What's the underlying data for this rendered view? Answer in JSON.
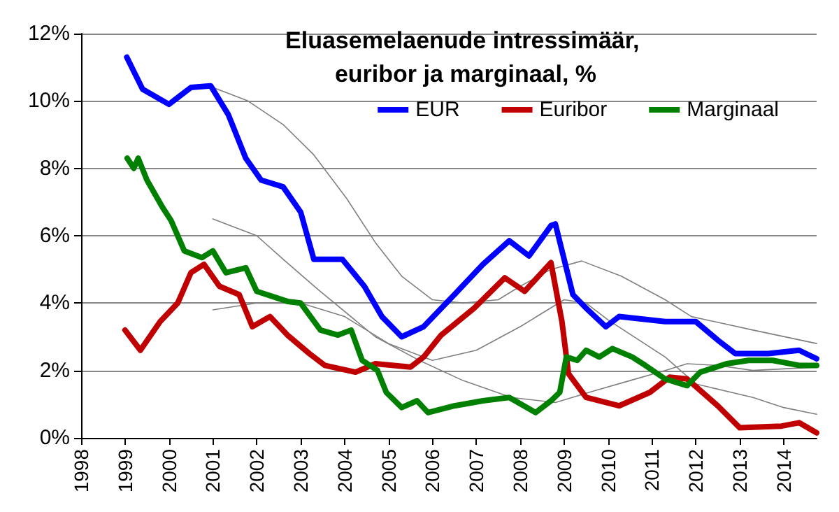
{
  "chart_data": {
    "type": "line",
    "title": "Eluasemelaenude intressimäär, euribor ja marginaal, %",
    "xlim": [
      1998,
      2014.75
    ],
    "xticks": [
      1998,
      1999,
      2000,
      2001,
      2002,
      2003,
      2004,
      2005,
      2006,
      2007,
      2008,
      2009,
      2010,
      2011,
      2012,
      2013,
      2014
    ],
    "ylim": [
      0,
      12
    ],
    "yticks": [
      {
        "value": 0,
        "label": "0%"
      },
      {
        "value": 2,
        "label": "2%"
      },
      {
        "value": 4,
        "label": "4%"
      },
      {
        "value": 6,
        "label": "6%"
      },
      {
        "value": 8,
        "label": "8%"
      },
      {
        "value": 10,
        "label": "10%"
      },
      {
        "value": 12,
        "label": "12%"
      }
    ],
    "grid": "y",
    "legend": "top right",
    "marker": "none",
    "line_style": "solid",
    "series": [
      {
        "name": "EUR",
        "color": "#0000ff",
        "x": [
          1999.04,
          1999.4,
          2000.0,
          2000.5,
          2000.95,
          2001.35,
          2001.75,
          2002.1,
          2002.6,
          2003.0,
          2003.3,
          2003.95,
          2004.45,
          2004.85,
          2005.3,
          2005.8,
          2006.5,
          2007.15,
          2007.75,
          2008.2,
          2008.7,
          2008.8,
          2009.2,
          2009.5,
          2009.95,
          2010.25,
          2011.3,
          2012.0,
          2012.5,
          2012.9,
          2013.65,
          2014.35,
          2014.75
        ],
        "values": [
          11.3,
          10.35,
          9.9,
          10.4,
          10.45,
          9.6,
          8.3,
          7.65,
          7.45,
          6.7,
          5.3,
          5.3,
          4.5,
          3.6,
          3.0,
          3.3,
          4.25,
          5.15,
          5.85,
          5.4,
          6.3,
          6.35,
          4.25,
          3.85,
          3.3,
          3.6,
          3.45,
          3.45,
          2.9,
          2.5,
          2.5,
          2.6,
          2.35
        ]
      },
      {
        "name": "Euribor",
        "color": "#c00000",
        "x": [
          1999.0,
          1999.35,
          1999.8,
          2000.2,
          2000.5,
          2000.8,
          2001.15,
          2001.6,
          2001.9,
          2002.3,
          2002.7,
          2003.2,
          2003.55,
          2004.25,
          2004.7,
          2005.5,
          2005.8,
          2006.2,
          2006.95,
          2007.65,
          2008.1,
          2008.7,
          2008.95,
          2009.1,
          2009.5,
          2010.25,
          2010.95,
          2011.4,
          2011.8,
          2012.5,
          2013.0,
          2013.95,
          2014.35,
          2014.75
        ],
        "values": [
          3.2,
          2.6,
          3.45,
          4.0,
          4.9,
          5.15,
          4.5,
          4.25,
          3.3,
          3.6,
          3.05,
          2.5,
          2.15,
          1.95,
          2.2,
          2.1,
          2.4,
          3.05,
          3.85,
          4.75,
          4.35,
          5.2,
          3.45,
          1.9,
          1.2,
          0.95,
          1.35,
          1.8,
          1.75,
          0.95,
          0.3,
          0.35,
          0.45,
          0.15
        ]
      },
      {
        "name": "Marginaal",
        "color": "#008000",
        "x": [
          1999.05,
          1999.2,
          1999.3,
          1999.5,
          1999.85,
          2000.05,
          2000.35,
          2000.75,
          2001.0,
          2001.3,
          2001.75,
          2002.0,
          2002.7,
          2003.0,
          2003.45,
          2003.85,
          2004.15,
          2004.4,
          2004.75,
          2004.95,
          2005.3,
          2005.65,
          2005.9,
          2006.5,
          2007.15,
          2007.75,
          2008.35,
          2008.7,
          2008.9,
          2009.05,
          2009.3,
          2009.5,
          2009.8,
          2010.1,
          2010.55,
          2010.85,
          2011.3,
          2011.8,
          2012.1,
          2012.7,
          2013.2,
          2013.75,
          2014.35,
          2014.75
        ],
        "values": [
          8.3,
          8.0,
          8.3,
          7.65,
          6.85,
          6.45,
          5.55,
          5.35,
          5.55,
          4.9,
          5.05,
          4.35,
          4.05,
          4.0,
          3.2,
          3.05,
          3.2,
          2.3,
          2.0,
          1.35,
          0.9,
          1.1,
          0.75,
          0.95,
          1.1,
          1.2,
          0.75,
          1.1,
          1.35,
          2.4,
          2.3,
          2.6,
          2.4,
          2.65,
          2.4,
          2.15,
          1.75,
          1.55,
          1.95,
          2.2,
          2.3,
          2.3,
          2.15,
          2.15
        ]
      },
      {
        "color": "#808080",
        "x": [
          2001.0,
          2001.8,
          2002.6,
          2003.3,
          2004.05,
          2004.7,
          2005.3,
          2006.0,
          2006.7,
          2007.5,
          2008.0,
          2008.7,
          2009.4,
          2010.3,
          2011.3,
          2011.9,
          2013.3,
          2014.75
        ],
        "values": [
          10.4,
          10.0,
          9.3,
          8.4,
          7.1,
          5.8,
          4.8,
          4.1,
          4.0,
          4.1,
          4.5,
          5.0,
          5.25,
          4.8,
          4.1,
          3.6,
          3.2,
          2.8
        ]
      },
      {
        "color": "#808080",
        "x": [
          2001.0,
          2002.0,
          2002.6,
          2003.4,
          2004.7,
          2005.7,
          2006.7,
          2007.8,
          2008.8,
          2009.7,
          2010.5,
          2011.3,
          2011.8,
          2012.5,
          2013.3,
          2014.75
        ],
        "values": [
          6.5,
          6.0,
          5.3,
          4.4,
          3.0,
          2.3,
          1.7,
          1.2,
          1.05,
          1.4,
          1.7,
          2.0,
          2.2,
          2.15,
          2.0,
          2.1
        ]
      },
      {
        "color": "#808080",
        "x": [
          2001.0,
          2002.0,
          2003.0,
          2004.0,
          2005.0,
          2006.0,
          2007.0,
          2008.0,
          2009.0,
          2009.5,
          2010.0,
          2011.3,
          2012.0,
          2013.3,
          2014.0,
          2014.75
        ],
        "values": [
          3.8,
          4.0,
          4.0,
          3.6,
          2.8,
          2.3,
          2.6,
          3.3,
          4.1,
          4.0,
          3.5,
          2.4,
          1.6,
          1.2,
          0.9,
          0.7
        ]
      }
    ]
  }
}
